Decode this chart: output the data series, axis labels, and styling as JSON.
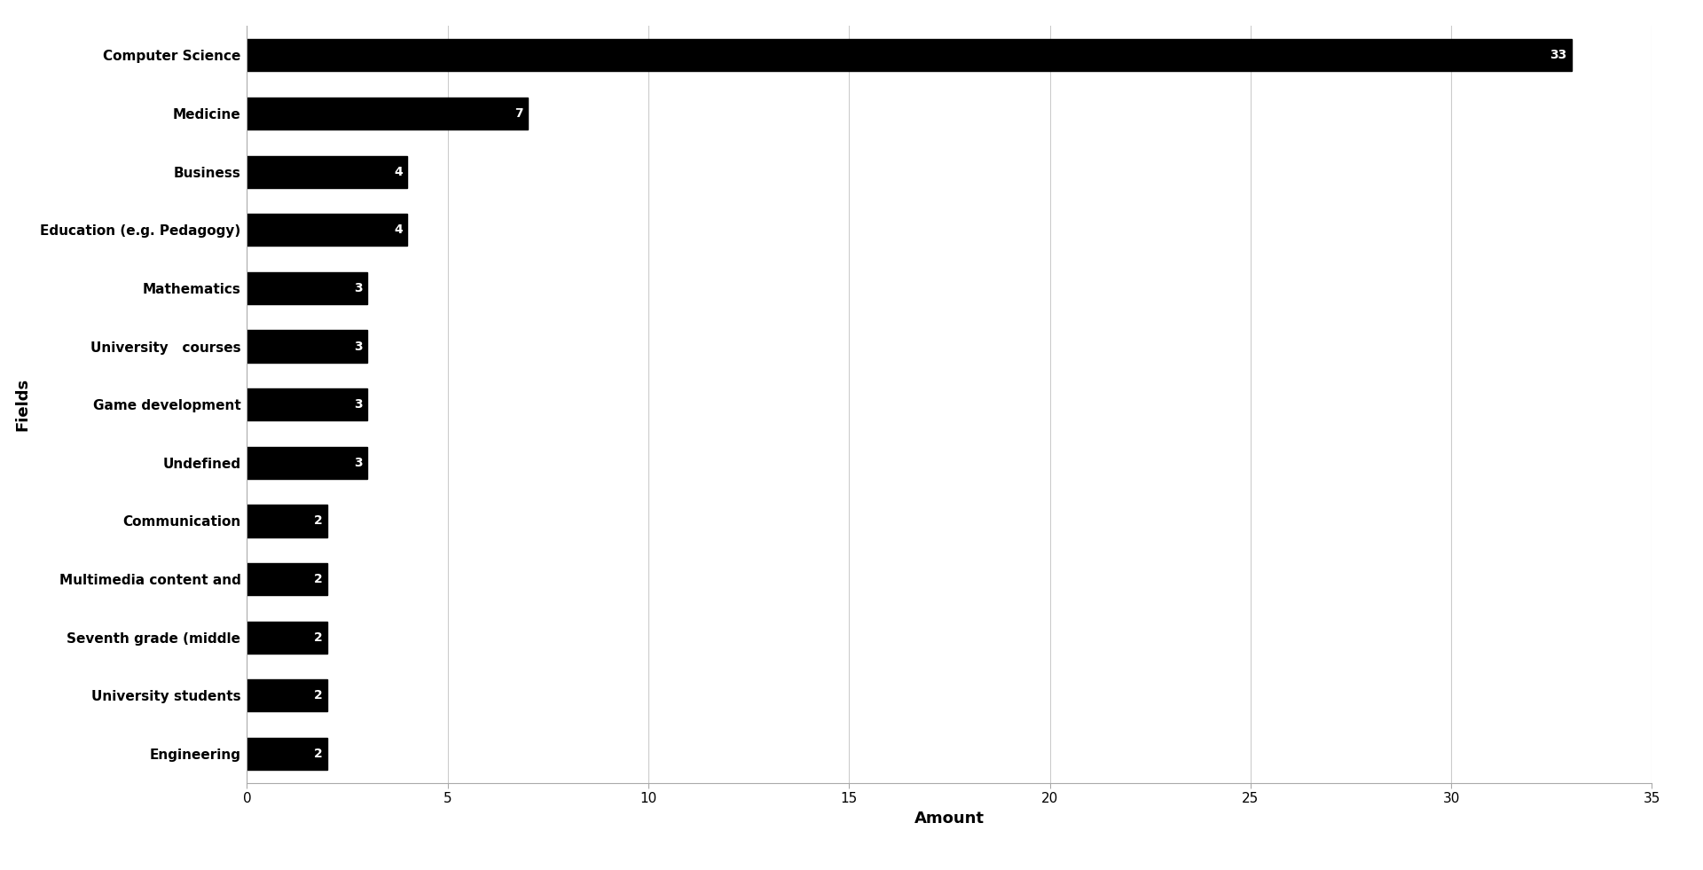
{
  "categories": [
    "Engineering",
    "University students",
    "Seventh grade (middle",
    "Multimedia content and",
    "Communication",
    "Undefined",
    "Game development",
    "University   courses",
    "Mathematics",
    "Education (e.g. Pedagogy)",
    "Business",
    "Medicine",
    "Computer Science"
  ],
  "values": [
    2,
    2,
    2,
    2,
    2,
    3,
    3,
    3,
    3,
    4,
    4,
    7,
    33
  ],
  "bar_color": "#000000",
  "text_color": "#ffffff",
  "xlabel": "Amount",
  "ylabel": "Fields",
  "xlim": [
    0,
    35
  ],
  "xticks": [
    0,
    5,
    10,
    15,
    20,
    25,
    30,
    35
  ],
  "background_color": "#ffffff",
  "grid_color": "#cccccc",
  "label_fontsize": 11,
  "tick_fontsize": 11,
  "axis_label_fontsize": 13,
  "bar_height": 0.55,
  "value_label_fontsize": 10
}
